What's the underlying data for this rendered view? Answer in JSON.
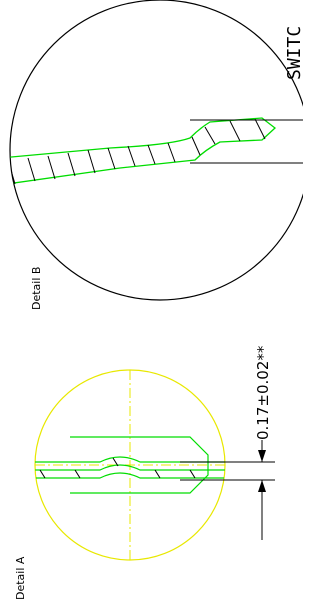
{
  "labels": {
    "detail_a": "Detail A",
    "detail_b": "Detail B",
    "dimension": "0.17±0.02**",
    "switch_text": "SWITC"
  }
}
